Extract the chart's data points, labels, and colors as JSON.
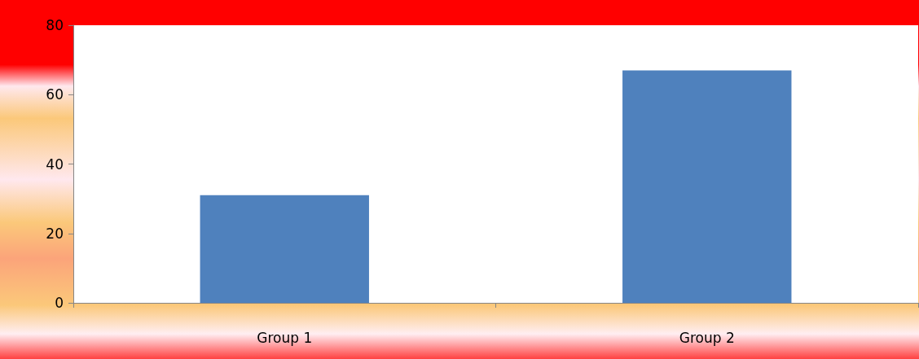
{
  "chart_data": {
    "type": "bar",
    "categories": [
      "Group 1",
      "Group 2"
    ],
    "values": [
      31,
      67
    ],
    "color": "#4f81bd",
    "ylim": [
      0,
      80
    ],
    "yticks": [
      0,
      20,
      40,
      60,
      80
    ],
    "grid": false
  }
}
